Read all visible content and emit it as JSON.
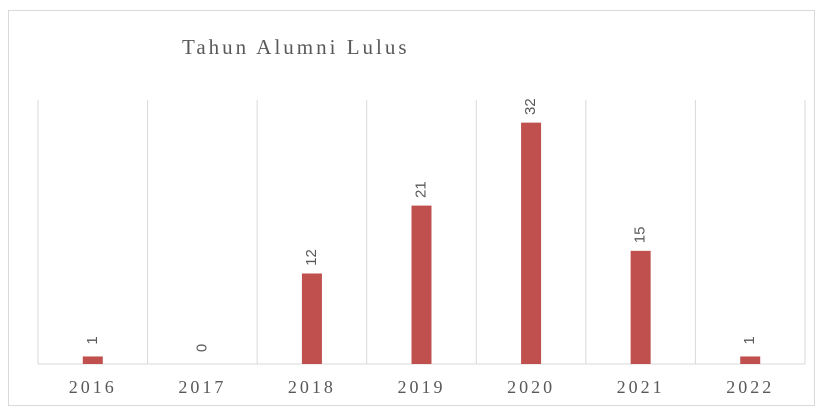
{
  "chart_data": {
    "type": "bar",
    "title": "Tahun Alumni Lulus",
    "categories": [
      "2016",
      "2017",
      "2018",
      "2019",
      "2020",
      "2021",
      "2022"
    ],
    "values": [
      1,
      0,
      12,
      21,
      32,
      15,
      1
    ],
    "color": "#c0504d",
    "ylim": [
      0,
      35
    ],
    "grid": true
  }
}
